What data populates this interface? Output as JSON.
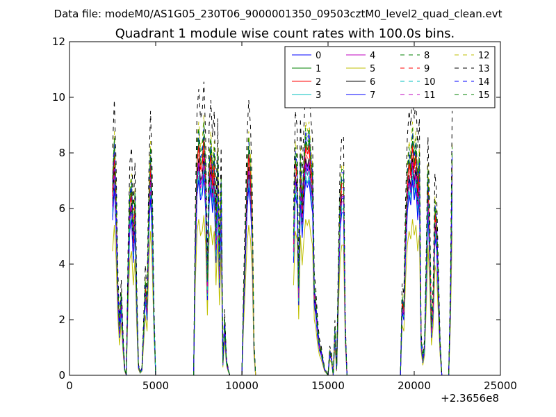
{
  "suptitle": "Data file: modeM0/AS1G05_230T06_9000001350_09503cztM0_level2_quad_clean.evt",
  "chart_data": {
    "type": "line",
    "title": "Quadrant 1 module wise count rates with 100.0s bins.",
    "xlabel": "",
    "ylabel": "",
    "xlim": [
      0,
      25000
    ],
    "ylim": [
      0,
      12
    ],
    "x_ticks": [
      "0",
      "5000",
      "10000",
      "15000",
      "20000",
      "25000"
    ],
    "y_ticks": [
      "0",
      "2",
      "4",
      "6",
      "8",
      "10",
      "12"
    ],
    "x_offset_label": "+2.3656e8",
    "grid": false,
    "legend_position": "top-right",
    "legend_columns": 4,
    "x": [
      2500,
      2600,
      2700,
      2800,
      2900,
      3000,
      3100,
      3200,
      3300,
      3400,
      3500,
      3600,
      3700,
      3800,
      3900,
      4000,
      4100,
      4200,
      4300,
      4400,
      4500,
      4600,
      4700,
      4800,
      4900,
      5000,
      5100,
      5200,
      7200,
      7300,
      7400,
      7500,
      7600,
      7700,
      7800,
      7900,
      8000,
      8100,
      8200,
      8300,
      8400,
      8500,
      8600,
      8700,
      8800,
      8900,
      9000,
      9100,
      9200,
      9300,
      9400,
      9500,
      10000,
      10100,
      10200,
      10300,
      10400,
      10500,
      10600,
      10700,
      10800,
      10900,
      11000,
      11100,
      11200,
      13000,
      13100,
      13200,
      13300,
      13400,
      13500,
      13600,
      13700,
      13800,
      13900,
      14000,
      14100,
      14200,
      14300,
      14400,
      14500,
      14600,
      14700,
      14800,
      14900,
      15000,
      15100,
      15200,
      15300,
      15400,
      15500,
      15600,
      15700,
      15800,
      15900,
      16000,
      16100,
      16200,
      16300,
      16400,
      16500,
      16600,
      16700,
      16800,
      19000,
      19100,
      19200,
      19300,
      19400,
      19500,
      19600,
      19700,
      19800,
      19900,
      20000,
      20100,
      20200,
      20300,
      20400,
      20500,
      20600,
      20700,
      20800,
      20900,
      21000,
      21100,
      21200,
      21300,
      21400,
      21500,
      21600,
      21700,
      21800,
      21900,
      22000,
      22100,
      22200,
      22300,
      22400,
      22500
    ],
    "base": [
      6.2,
      7.5,
      5.8,
      3.0,
      1.5,
      2.6,
      1.2,
      0.2,
      0,
      3.5,
      5.8,
      6.2,
      4.5,
      5.8,
      2.5,
      0.3,
      0.1,
      0.2,
      1.5,
      3.0,
      2.2,
      5.5,
      7.2,
      5.5,
      2.0,
      0,
      0,
      0,
      0,
      4.5,
      7.2,
      7.8,
      7.0,
      7.2,
      8.0,
      6.5,
      3.0,
      6.8,
      7.5,
      6.5,
      7.2,
      4.5,
      7.0,
      3.5,
      6.2,
      0.4,
      1.8,
      0.5,
      0.2,
      0,
      0,
      0,
      0,
      2.5,
      4.5,
      6.5,
      7.5,
      6.8,
      5.2,
      1.0,
      0,
      0,
      0,
      0,
      0,
      4.5,
      7.2,
      6.8,
      2.8,
      7.0,
      5.5,
      6.8,
      7.8,
      7.5,
      7.8,
      7.0,
      6.5,
      2.8,
      2.3,
      1.5,
      1.0,
      0.8,
      0.5,
      0.2,
      0.1,
      0,
      0.8,
      0.6,
      0,
      1.5,
      0.2,
      3.2,
      5.8,
      6.5,
      6.5,
      1.5,
      0,
      0,
      0,
      0,
      0,
      0,
      0,
      0,
      0,
      0,
      0,
      2.5,
      2.2,
      4.8,
      6.5,
      7.2,
      6.8,
      7.8,
      7.0,
      7.5,
      6.2,
      7.0,
      1.2,
      0.5,
      1.0,
      3.5,
      6.5,
      4.5,
      1.5,
      2.5,
      5.5,
      5.0,
      3.0,
      1.0,
      0,
      0,
      0,
      0,
      0,
      2.5,
      7.2
    ],
    "series": [
      {
        "name": "0",
        "color": "#0000ff",
        "dash": "solid",
        "scale": 0.98,
        "offset": 0.0
      },
      {
        "name": "1",
        "color": "#008000",
        "dash": "solid",
        "scale": 1.08,
        "offset": 0.0
      },
      {
        "name": "2",
        "color": "#ff0000",
        "dash": "solid",
        "scale": 1.06,
        "offset": 0.0
      },
      {
        "name": "3",
        "color": "#00bfbf",
        "dash": "solid",
        "scale": 0.92,
        "offset": 0.0
      },
      {
        "name": "4",
        "color": "#bf00bf",
        "dash": "solid",
        "scale": 0.96,
        "offset": 0.0
      },
      {
        "name": "5",
        "color": "#bfbf00",
        "dash": "solid",
        "scale": 0.72,
        "offset": 0.0
      },
      {
        "name": "6",
        "color": "#000000",
        "dash": "solid",
        "scale": 1.0,
        "offset": 0.0
      },
      {
        "name": "7",
        "color": "#0000ff",
        "dash": "solid",
        "scale": 0.9,
        "offset": 0.0
      },
      {
        "name": "8",
        "color": "#008000",
        "dash": "dashed",
        "scale": 1.1,
        "offset": 0.0
      },
      {
        "name": "9",
        "color": "#ff0000",
        "dash": "dashed",
        "scale": 1.04,
        "offset": 0.0
      },
      {
        "name": "10",
        "color": "#00bfbf",
        "dash": "dashed",
        "scale": 0.95,
        "offset": 0.0
      },
      {
        "name": "11",
        "color": "#bf00bf",
        "dash": "dashed",
        "scale": 0.99,
        "offset": 0.0
      },
      {
        "name": "12",
        "color": "#bfbf00",
        "dash": "dashed",
        "scale": 1.17,
        "offset": 0.0
      },
      {
        "name": "13",
        "color": "#000000",
        "dash": "dashed",
        "scale": 1.32,
        "offset": 0.0
      },
      {
        "name": "14",
        "color": "#0000ff",
        "dash": "dashed",
        "scale": 1.12,
        "offset": 0.0
      },
      {
        "name": "15",
        "color": "#008000",
        "dash": "dashed",
        "scale": 1.14,
        "offset": 0.0
      }
    ]
  }
}
